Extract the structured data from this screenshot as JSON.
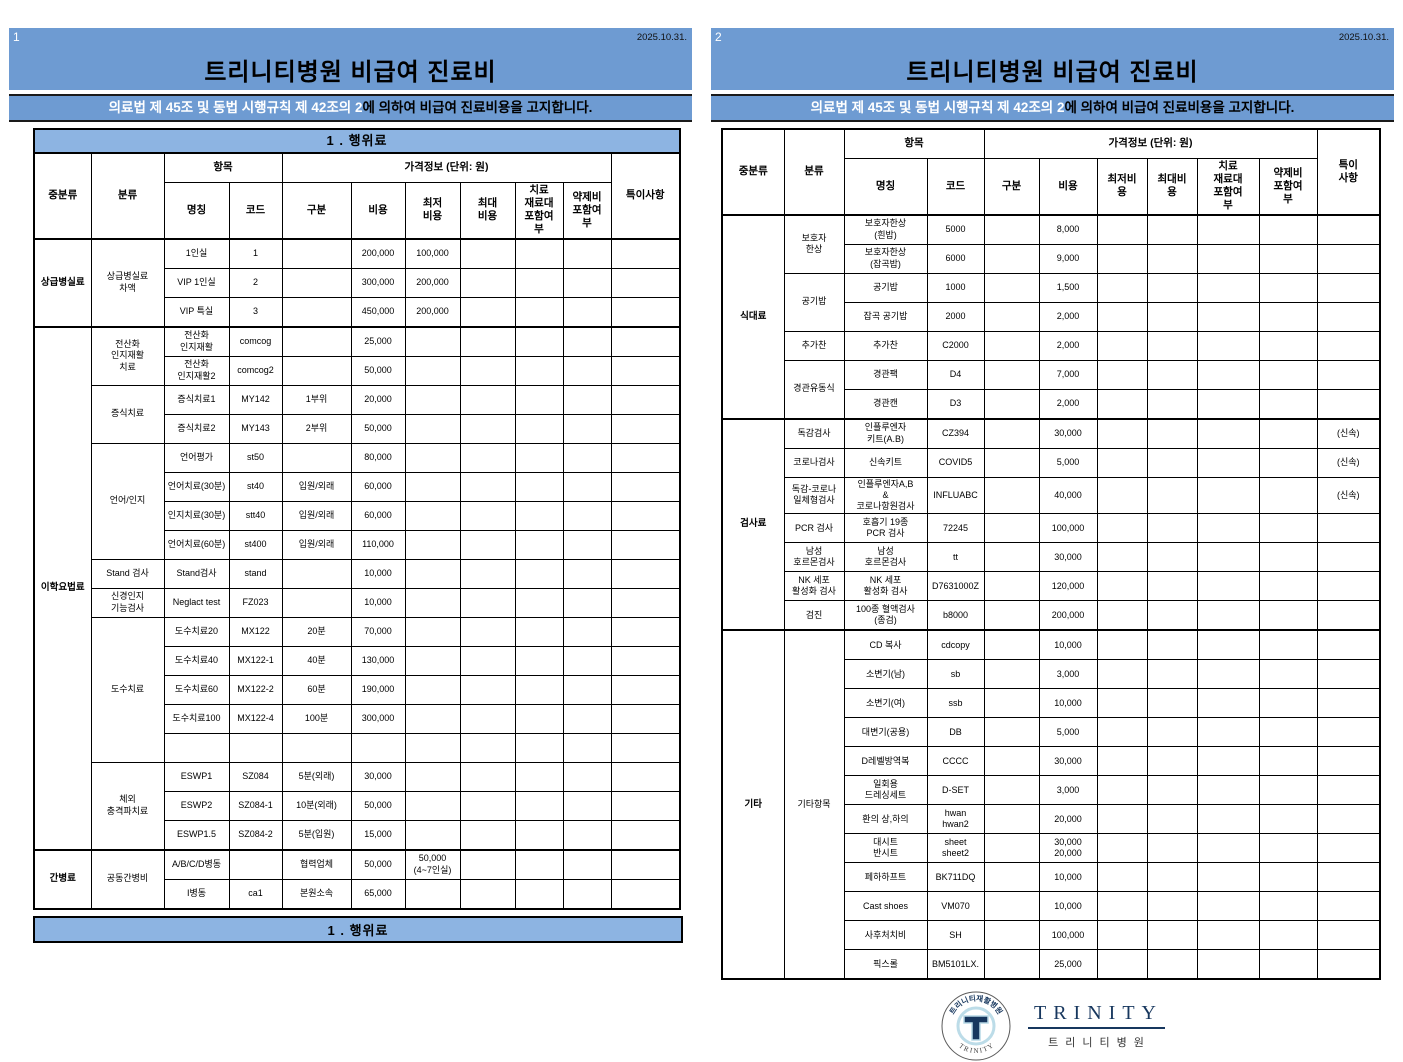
{
  "pages": [
    {
      "page_no": "1",
      "date": "2025.10.31.",
      "title": "트리니티병원 비급여 진료비",
      "subtitle_highlight": "의료법 제 45조 및 동법 시행규칙 제 42조의 2",
      "subtitle_rest": "에 의하여 비급여 진료비용을 고지합니다.",
      "table": {
        "title_band": "1 . 행위료",
        "footer_band": "1 . 행위료",
        "header": {
          "major": "중분류",
          "minor": "분류",
          "item_group": "항목",
          "price_group": "가격정보 (단위: 원)",
          "note": "특이사항",
          "sub_cols": [
            "명칭",
            "코드",
            "구분",
            "비용",
            "최저\n비용",
            "최대\n비용",
            "치료\n재료대\n포함여\n부",
            "약제비\n포함여\n부"
          ]
        },
        "groups": [
          {
            "major": "상급병실료",
            "subgroups": [
              {
                "minor": "상급병실료\n차액",
                "rows": [
                  {
                    "name": "1인실",
                    "code": "1",
                    "cost": "200,000",
                    "min": "100,000"
                  },
                  {
                    "name": "VIP 1인실",
                    "code": "2",
                    "cost": "300,000",
                    "min": "200,000"
                  },
                  {
                    "name": "VIP 특실",
                    "code": "3",
                    "cost": "450,000",
                    "min": "200,000"
                  }
                ]
              }
            ]
          },
          {
            "major": "이학요법료",
            "subgroups": [
              {
                "minor": "전산화\n인지재활\n치료",
                "rows": [
                  {
                    "name": "전산화\n인지재활",
                    "code": "comcog",
                    "cost": "25,000"
                  },
                  {
                    "name": "전산화\n인지재활2",
                    "code": "comcog2",
                    "cost": "50,000"
                  }
                ]
              },
              {
                "minor": "증식치료",
                "rows": [
                  {
                    "name": "증식치료1",
                    "code": "MY142",
                    "gubun": "1부위",
                    "cost": "20,000"
                  },
                  {
                    "name": "증식치료2",
                    "code": "MY143",
                    "gubun": "2부위",
                    "cost": "50,000"
                  }
                ]
              },
              {
                "minor": "언어/인지",
                "rows": [
                  {
                    "name": "언어평가",
                    "code": "st50",
                    "cost": "80,000"
                  },
                  {
                    "name": "언어치료(30분)",
                    "code": "st40",
                    "gubun": "입원/외래",
                    "cost": "60,000"
                  },
                  {
                    "name": "인지치료(30분)",
                    "code": "stt40",
                    "gubun": "입원/외래",
                    "cost": "60,000"
                  },
                  {
                    "name": "언어치료(60분)",
                    "code": "st400",
                    "gubun": "입원/외래",
                    "cost": "110,000"
                  }
                ]
              },
              {
                "minor": "Stand 검사",
                "rows": [
                  {
                    "name": "Stand검사",
                    "code": "stand",
                    "cost": "10,000"
                  }
                ]
              },
              {
                "minor": "신경인지\n기능검사",
                "rows": [
                  {
                    "name": "Neglact test",
                    "code": "FZ023",
                    "cost": "10,000"
                  }
                ]
              },
              {
                "minor": "도수치료",
                "rows": [
                  {
                    "name": "도수치료20",
                    "code": "MX122",
                    "gubun": "20분",
                    "cost": "70,000"
                  },
                  {
                    "name": "도수치료40",
                    "code": "MX122-1",
                    "gubun": "40분",
                    "cost": "130,000"
                  },
                  {
                    "name": "도수치료60",
                    "code": "MX122-2",
                    "gubun": "60분",
                    "cost": "190,000"
                  },
                  {
                    "name": "도수치료100",
                    "code": "MX122-4",
                    "gubun": "100분",
                    "cost": "300,000"
                  },
                  {
                    "name": "",
                    "code": "",
                    "gubun": "",
                    "cost": ""
                  }
                ]
              },
              {
                "minor": "체외\n충격파치료",
                "rows": [
                  {
                    "name": "ESWP1",
                    "code": "SZ084",
                    "gubun": "5분(외래)",
                    "cost": "30,000"
                  },
                  {
                    "name": "ESWP2",
                    "code": "SZ084-1",
                    "gubun": "10분(외래)",
                    "cost": "50,000"
                  },
                  {
                    "name": "ESWP1.5",
                    "code": "SZ084-2",
                    "gubun": "5분(입원)",
                    "cost": "15,000"
                  }
                ]
              }
            ]
          },
          {
            "major": "간병료",
            "subgroups": [
              {
                "minor": "공동간병비",
                "rows": [
                  {
                    "name": "A/B/C/D병동",
                    "gubun": "협력업체",
                    "cost": "50,000",
                    "min": "50,000\n(4~7인실)"
                  },
                  {
                    "name": "I병동",
                    "code": "ca1",
                    "gubun": "본원소속",
                    "cost": "65,000"
                  }
                ]
              }
            ]
          }
        ]
      }
    },
    {
      "page_no": "2",
      "date": "2025.10.31.",
      "title": "트리니티병원 비급여 진료비",
      "subtitle_highlight": "의료법 제 45조 및 동법 시행규칙 제 42조의 2",
      "subtitle_rest": "에 의하여 비급여 진료비용을 고지합니다.",
      "table": {
        "title_band": null,
        "footer_band": null,
        "header": {
          "major": "중분류",
          "minor": "분류",
          "item_group": "항목",
          "price_group": "가격정보 (단위: 원)",
          "note": "특이\n사항",
          "sub_cols": [
            "명칭",
            "코드",
            "구분",
            "비용",
            "최저비\n용",
            "최대비\n용",
            "치료\n재료대\n포함여\n부",
            "약제비\n포함여\n부"
          ]
        },
        "groups": [
          {
            "major": "식대료",
            "subgroups": [
              {
                "minor": "보호자\n한상",
                "rows": [
                  {
                    "name": "보호자한상\n(흰밥)",
                    "code": "5000",
                    "cost": "8,000"
                  },
                  {
                    "name": "보호자한상\n(잡곡밥)",
                    "code": "6000",
                    "cost": "9,000"
                  }
                ]
              },
              {
                "minor": "공기밥",
                "rows": [
                  {
                    "name": "공기밥",
                    "code": "1000",
                    "cost": "1,500"
                  },
                  {
                    "name": "잡곡 공기밥",
                    "code": "2000",
                    "cost": "2,000"
                  }
                ]
              },
              {
                "minor": "추가찬",
                "rows": [
                  {
                    "name": "추가찬",
                    "code": "C2000",
                    "cost": "2,000"
                  }
                ]
              },
              {
                "minor": "경관유동식",
                "rows": [
                  {
                    "name": "경관팩",
                    "code": "D4",
                    "cost": "7,000"
                  },
                  {
                    "name": "경관캔",
                    "code": "D3",
                    "cost": "2,000"
                  }
                ]
              }
            ]
          },
          {
            "major": "검사료",
            "subgroups": [
              {
                "minor": "독감검사",
                "rows": [
                  {
                    "name": "인플루엔자\n키트(A.B)",
                    "code": "CZ394",
                    "cost": "30,000",
                    "note": "(신속)"
                  }
                ]
              },
              {
                "minor": "코로나검사",
                "rows": [
                  {
                    "name": "신속키트",
                    "code": "COVID5",
                    "cost": "5,000",
                    "note": "(신속)"
                  }
                ]
              },
              {
                "minor": "독감-코로나\n일체형검사",
                "rows": [
                  {
                    "name": "인플루엔자A,B\n&\n코로나항원검사",
                    "code": "INFLUABC",
                    "cost": "40,000",
                    "note": "(신속)"
                  }
                ]
              },
              {
                "minor": "PCR 검사",
                "rows": [
                  {
                    "name": "호흡기 19종\nPCR 검사",
                    "code": "72245",
                    "cost": "100,000"
                  }
                ]
              },
              {
                "minor": "남성\n호르몬검사",
                "rows": [
                  {
                    "name": "남성\n호르몬검사",
                    "code": "tt",
                    "cost": "30,000"
                  }
                ]
              },
              {
                "minor": "NK 세포\n활성화 검사",
                "rows": [
                  {
                    "name": "NK 세포\n활성화 검사",
                    "code": "D7631000Z",
                    "cost": "120,000"
                  }
                ]
              },
              {
                "minor": "검진",
                "rows": [
                  {
                    "name": "100종 혈액검사\n(종검)",
                    "code": "b8000",
                    "cost": "200,000"
                  }
                ]
              }
            ]
          },
          {
            "major": "기타",
            "subgroups": [
              {
                "minor": "기타항목",
                "rows": [
                  {
                    "name": "CD 복사",
                    "code": "cdcopy",
                    "cost": "10,000"
                  },
                  {
                    "name": "소변기(남)",
                    "code": "sb",
                    "cost": "3,000"
                  },
                  {
                    "name": "소변기(여)",
                    "code": "ssb",
                    "cost": "10,000"
                  },
                  {
                    "name": "대변기(공용)",
                    "code": "DB",
                    "cost": "5,000"
                  },
                  {
                    "name": "D레벨방역복",
                    "code": "CCCC",
                    "cost": "30,000"
                  },
                  {
                    "name": "일회용\n드레싱세트",
                    "code": "D-SET",
                    "cost": "3,000"
                  },
                  {
                    "name": "환의 상,하의",
                    "code": "hwan\nhwan2",
                    "cost": "20,000"
                  },
                  {
                    "name": "대시트\n반시트",
                    "code": "sheet\nsheet2",
                    "cost": "30,000\n20,000"
                  },
                  {
                    "name": "페하하프트",
                    "code": "BK711DQ",
                    "cost": "10,000"
                  },
                  {
                    "name": "Cast shoes",
                    "code": "VM070",
                    "cost": "10,000"
                  },
                  {
                    "name": "사후처치비",
                    "code": "SH",
                    "cost": "100,000"
                  },
                  {
                    "name": "픽스롤",
                    "code": "BM5101LX.",
                    "cost": "25,000"
                  }
                ]
              }
            ]
          }
        ]
      }
    }
  ],
  "logo": {
    "badge_top": "트리니티재활병원",
    "badge_bottom": "T R I N I T Y",
    "wordmark": "TRINITY",
    "wordmark_sub": "트리니티병원"
  },
  "colors": {
    "band_blue": "#6e9bd2",
    "table_band_blue": "#8db4e2",
    "logo_navy": "#17375e"
  }
}
